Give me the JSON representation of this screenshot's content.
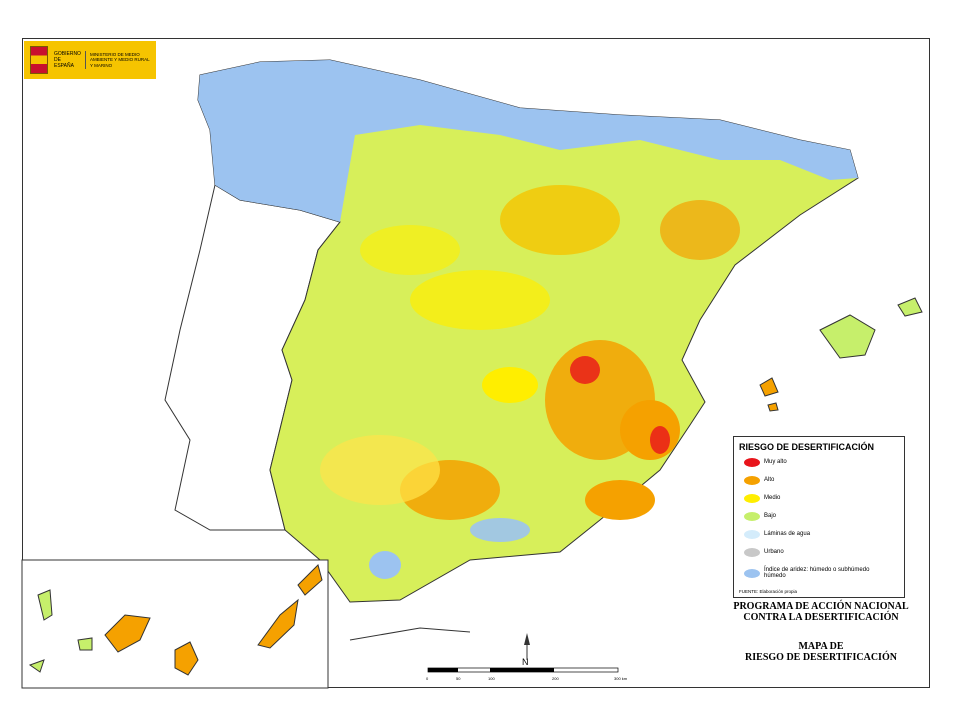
{
  "logo": {
    "gov": "GOBIERNO DE ESPAÑA",
    "ministry": "MINISTERIO DE MEDIO AMBIENTE Y MEDIO RURAL Y MARINO"
  },
  "legend": {
    "title": "RIESGO DE DESERTIFICACIÓN",
    "items": [
      {
        "label": "Muy alto",
        "color": "#e8141b"
      },
      {
        "label": "Alto",
        "color": "#f5a100"
      },
      {
        "label": "Medio",
        "color": "#ffee00"
      },
      {
        "label": "Bajo",
        "color": "#c6ef6b"
      },
      {
        "label": "Láminas de agua",
        "color": "#d4ecfb"
      },
      {
        "label": "Urbano",
        "color": "#c8c8c8"
      },
      {
        "label": "Índice de aridez: húmedo o subhúmedo húmedo",
        "color": "#9cc3f0"
      }
    ],
    "source": "FUENTE: Elaboración propia"
  },
  "program": [
    "PROGRAMA DE ACCIÓN NACIONAL",
    "CONTRA LA DESERTIFICACIÓN"
  ],
  "map_title": [
    "MAPA DE",
    "RIESGO DE DESERTIFICACIÓN"
  ],
  "north": "N",
  "scale": [
    "0",
    "50",
    "100",
    "200",
    "300 km"
  ]
}
